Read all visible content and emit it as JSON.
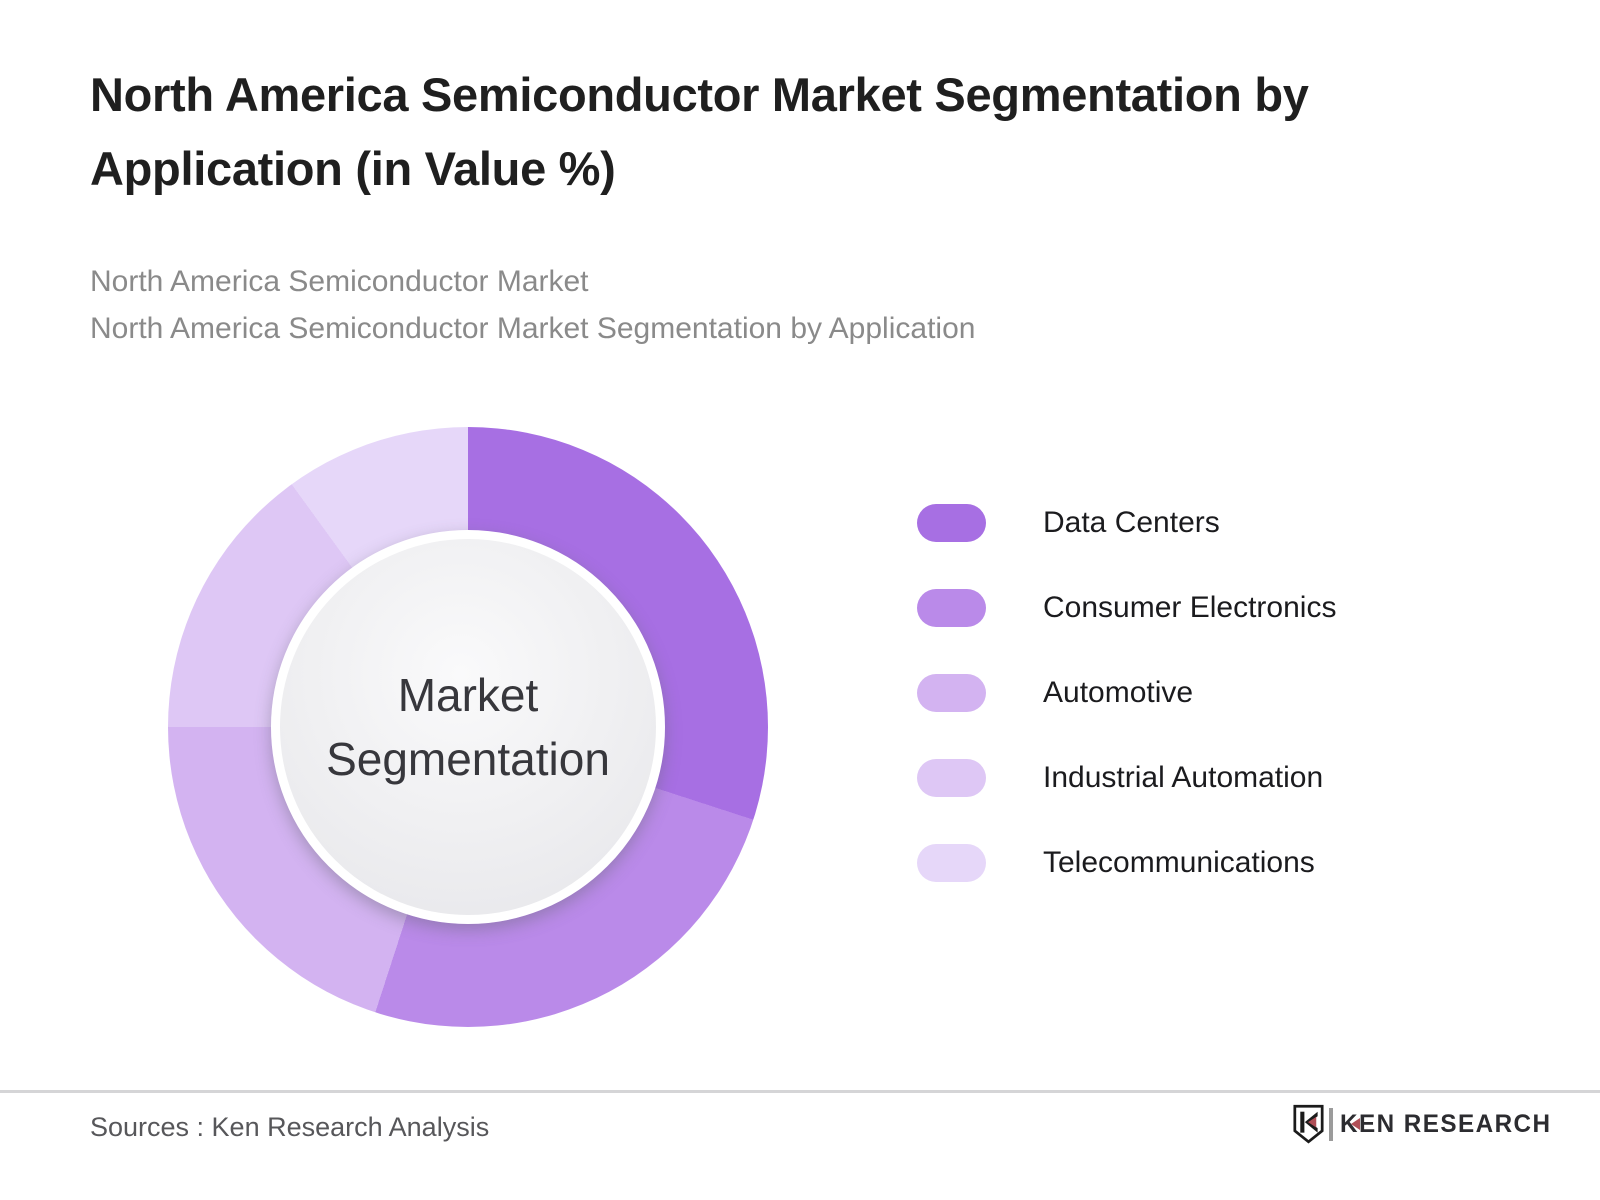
{
  "page": {
    "title": "North America Semiconductor Market Segmentation by Application (in Value %)",
    "subtitles": [
      "North America Semiconductor Market",
      "North America Semiconductor Market Segmentation by Application"
    ]
  },
  "chart_data": {
    "type": "pie",
    "variant": "donut",
    "title": "North America Semiconductor Market Segmentation by Application (in Value %)",
    "center_label": "Market Segmentation",
    "categories": [
      "Data Centers",
      "Consumer Electronics",
      "Automotive",
      "Industrial Automation",
      "Telecommunications"
    ],
    "values": [
      30,
      25,
      20,
      15,
      10
    ],
    "unit": "%",
    "colors": [
      "#A76FE3",
      "#BA8AE9",
      "#D3B3F1",
      "#DEC7F5",
      "#E6D7F9"
    ],
    "start_angle_deg": 0,
    "direction": "clockwise",
    "legend_position": "right",
    "data_labels_shown": false
  },
  "footer": {
    "sources": "Sources : Ken Research Analysis",
    "brand": "KEN RESEARCH"
  }
}
